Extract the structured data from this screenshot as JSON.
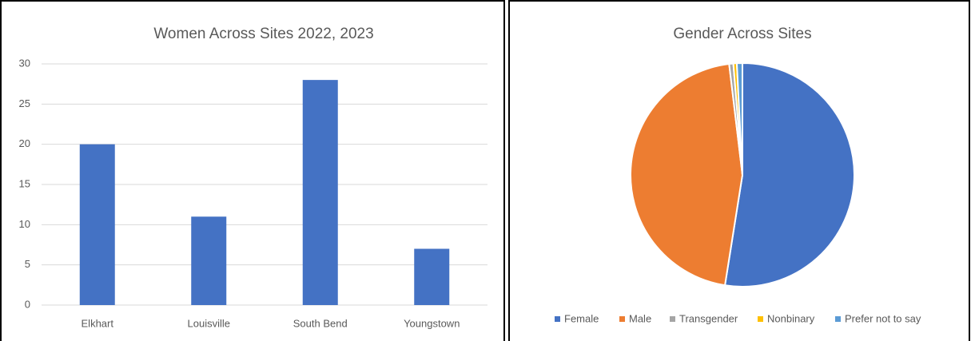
{
  "chart_data": [
    {
      "type": "bar",
      "title": "Women Across Sites 2022, 2023",
      "categories": [
        "Elkhart",
        "Louisville",
        "South Bend",
        "Youngstown"
      ],
      "values": [
        20,
        11,
        28,
        7
      ],
      "color": "#4472c4",
      "ylim": [
        0,
        30
      ],
      "yticks": [
        0,
        5,
        10,
        15,
        20,
        25,
        30
      ],
      "grid": true
    },
    {
      "type": "pie",
      "title": "Gender Across Sites",
      "categories": [
        "Female",
        "Male",
        "Transgender",
        "Nonbinary",
        "Prefer not to say"
      ],
      "values": [
        52.5,
        45.6,
        0.6,
        0.5,
        0.8
      ],
      "colors": [
        "#4472c4",
        "#ed7d31",
        "#a5a5a5",
        "#ffc000",
        "#5b9bd5"
      ],
      "legend": "bottom"
    }
  ]
}
